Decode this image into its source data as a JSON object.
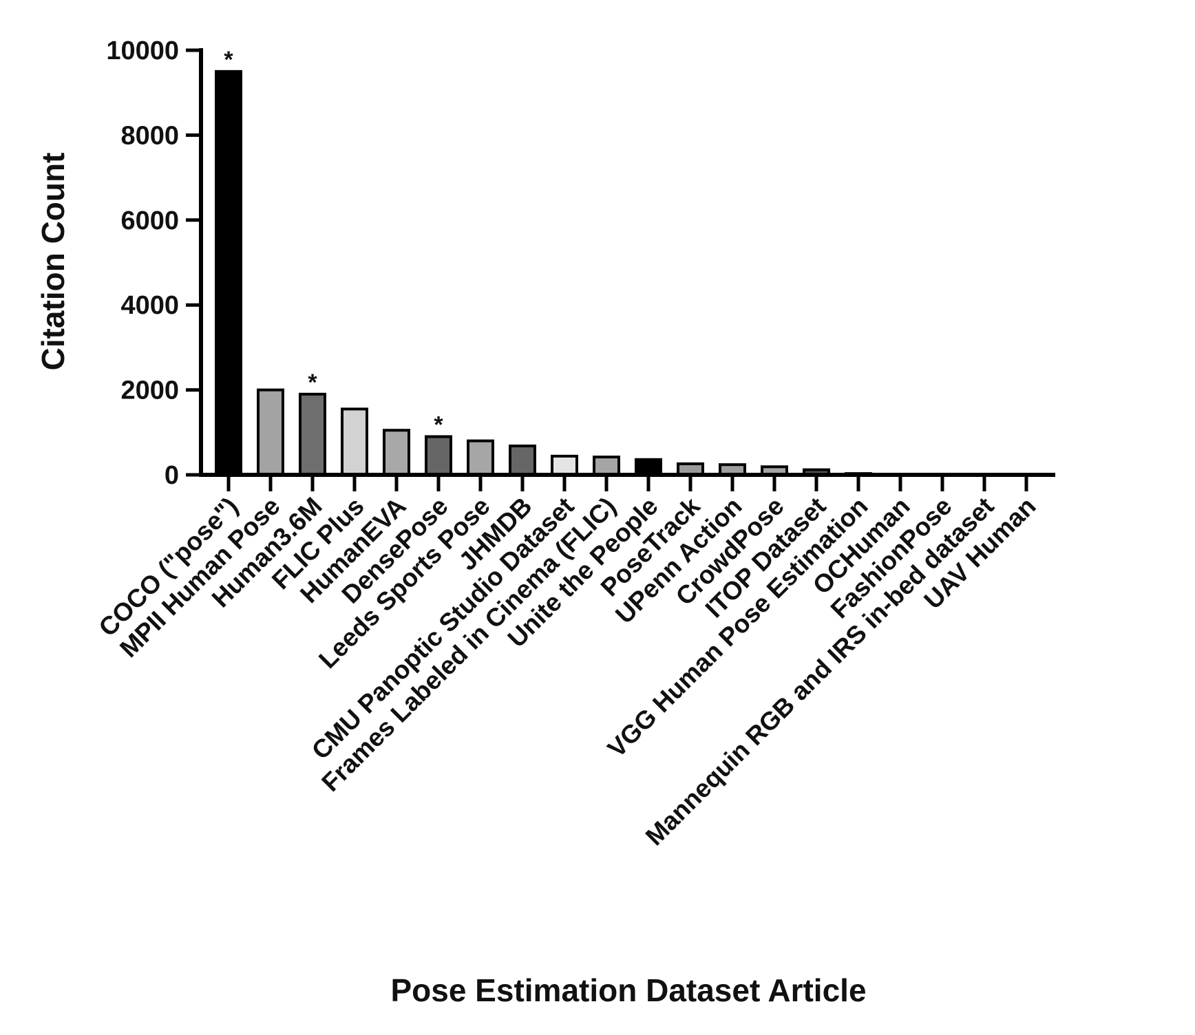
{
  "chart_data": {
    "type": "bar",
    "xlabel": "Pose Estimation Dataset Article",
    "ylabel": "Citation Count",
    "ylim": [
      0,
      10000
    ],
    "yticks": [
      0,
      2000,
      4000,
      6000,
      8000,
      10000
    ],
    "grid": false,
    "categories": [
      "COCO (\"pose\")",
      "MPII Human Pose",
      "Human3.6M",
      "FLIC Plus",
      "HumanEVA",
      "DensePose",
      "Leeds Sports Pose",
      "JHMDB",
      "CMU Panoptic Studio Dataset",
      "Frames Labeled in Cinema (FLIC)",
      "Unite the People",
      "PoseTrack",
      "UPenn Action",
      "CrowdPose",
      "ITOP Dataset",
      "VGG Human Pose Estimation",
      "OCHuman",
      "FashionPose",
      "Mannequin RGB and IRS in-bed dataset",
      "UAV Human"
    ],
    "values": [
      9500,
      2000,
      1900,
      1550,
      1050,
      900,
      800,
      680,
      440,
      420,
      360,
      260,
      240,
      190,
      120,
      30,
      0,
      0,
      0,
      0
    ],
    "colors": [
      "#000000",
      "#a3a3a3",
      "#6e6e6e",
      "#d2d2d2",
      "#a8a8a8",
      "#666666",
      "#a6a6a6",
      "#666666",
      "#e4e4e4",
      "#a5a5a5",
      "#000000",
      "#9a9a9a",
      "#9e9e9e",
      "#a4a4a4",
      "#555555",
      "#888888",
      "#888888",
      "#888888",
      "#888888",
      "#888888"
    ],
    "annotations": [
      {
        "category": "COCO (\"pose\")",
        "text": "*"
      },
      {
        "category": "Human3.6M",
        "text": "*"
      },
      {
        "category": "DensePose",
        "text": "*"
      }
    ]
  }
}
